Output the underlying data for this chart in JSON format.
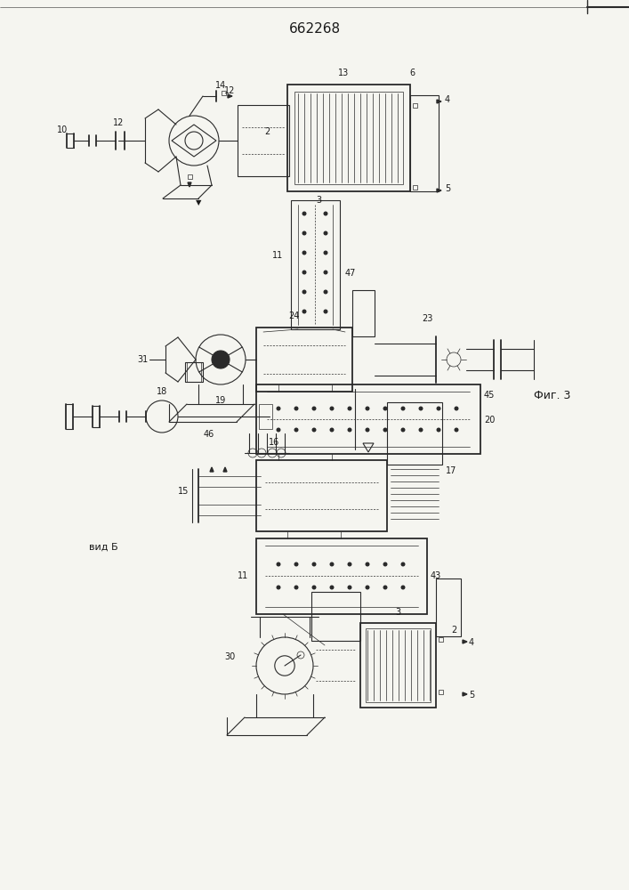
{
  "title": "662268",
  "bg_color": "#f5f5f0",
  "line_color": "#2a2a2a",
  "label_color": "#1a1a1a",
  "fig3_label": "Фиг. 3",
  "vidB_label": "вид Б",
  "fig_width": 7.07,
  "fig_height": 10.0
}
